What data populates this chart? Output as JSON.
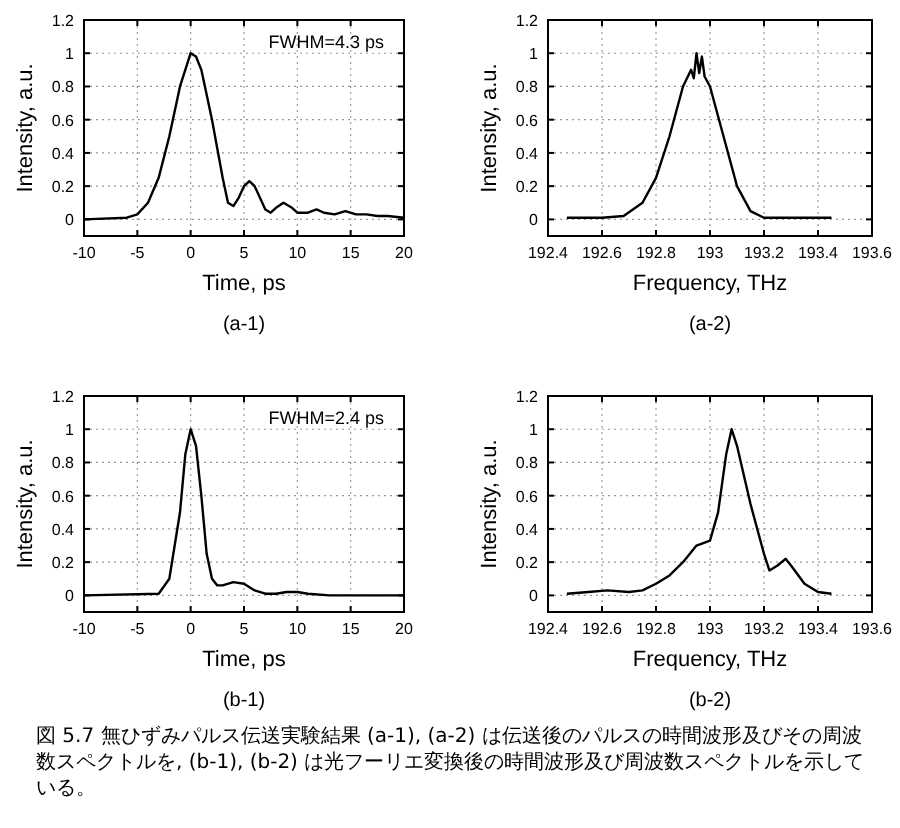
{
  "chart_data": [
    {
      "type": "line",
      "title": "(a-1)",
      "xlabel": "Time, ps",
      "ylabel": "Intensity, a.u.",
      "xlim": [
        -10,
        20
      ],
      "xticks": [
        -10,
        -5,
        0,
        5,
        10,
        15,
        20
      ],
      "ylim": [
        -0.1,
        1.2
      ],
      "yticks": [
        0,
        0.2,
        0.4,
        0.6,
        0.8,
        1,
        1.2
      ],
      "grid": true,
      "annotations": [
        "FWHM=4.3 ps"
      ],
      "series": [
        {
          "color": "#000000",
          "x": [
            -10,
            -6,
            -5,
            -4,
            -3,
            -2,
            -1,
            0,
            0.5,
            1,
            2,
            3,
            3.5,
            4,
            4.5,
            5,
            5.5,
            6,
            7,
            7.5,
            8,
            8.7,
            9.5,
            10,
            11,
            11.8,
            12.5,
            13.5,
            14.5,
            15.5,
            16.5,
            17.5,
            18.5,
            20
          ],
          "values": [
            0,
            0.01,
            0.03,
            0.1,
            0.25,
            0.5,
            0.8,
            1.0,
            0.98,
            0.9,
            0.6,
            0.25,
            0.1,
            0.08,
            0.13,
            0.2,
            0.23,
            0.2,
            0.06,
            0.04,
            0.07,
            0.1,
            0.07,
            0.04,
            0.04,
            0.06,
            0.04,
            0.03,
            0.05,
            0.03,
            0.03,
            0.02,
            0.02,
            0.01
          ]
        }
      ]
    },
    {
      "type": "line",
      "title": "(a-2)",
      "xlabel": "Frequency, THz",
      "ylabel": "Intensity, a.u.",
      "xlim": [
        192.4,
        193.6
      ],
      "xticks": [
        192.4,
        192.6,
        192.8,
        193,
        193.2,
        193.4,
        193.6
      ],
      "ylim": [
        -0.1,
        1.2
      ],
      "yticks": [
        0,
        0.2,
        0.4,
        0.6,
        0.8,
        1,
        1.2
      ],
      "grid": true,
      "series": [
        {
          "color": "#000000",
          "x": [
            192.47,
            192.6,
            192.68,
            192.75,
            192.8,
            192.85,
            192.9,
            192.93,
            192.94,
            192.95,
            192.96,
            192.97,
            192.98,
            193.0,
            193.05,
            193.1,
            193.15,
            193.2,
            193.3,
            193.45
          ],
          "values": [
            0.01,
            0.01,
            0.02,
            0.1,
            0.25,
            0.5,
            0.8,
            0.9,
            0.85,
            1.0,
            0.88,
            0.98,
            0.86,
            0.8,
            0.5,
            0.2,
            0.05,
            0.01,
            0.01,
            0.01
          ]
        }
      ]
    },
    {
      "type": "line",
      "title": "(b-1)",
      "xlabel": "Time, ps",
      "ylabel": "Intensity, a.u.",
      "xlim": [
        -10,
        20
      ],
      "xticks": [
        -10,
        -5,
        0,
        5,
        10,
        15,
        20
      ],
      "ylim": [
        -0.1,
        1.2
      ],
      "yticks": [
        0,
        0.2,
        0.4,
        0.6,
        0.8,
        1,
        1.2
      ],
      "grid": true,
      "annotations": [
        "FWHM=2.4 ps"
      ],
      "series": [
        {
          "color": "#000000",
          "x": [
            -10,
            -3,
            -2,
            -1,
            -0.5,
            0,
            0.5,
            1,
            1.5,
            2,
            2.5,
            3,
            4,
            5,
            6,
            7,
            8,
            9,
            10,
            11,
            13,
            20
          ],
          "values": [
            0,
            0.01,
            0.1,
            0.5,
            0.85,
            1.0,
            0.9,
            0.6,
            0.25,
            0.1,
            0.06,
            0.06,
            0.08,
            0.07,
            0.03,
            0.01,
            0.01,
            0.02,
            0.02,
            0.01,
            0,
            0
          ]
        }
      ]
    },
    {
      "type": "line",
      "title": "(b-2)",
      "xlabel": "Frequency, THz",
      "ylabel": "Intensity, a.u.",
      "xlim": [
        192.4,
        193.6
      ],
      "xticks": [
        192.4,
        192.6,
        192.8,
        193,
        193.2,
        193.4,
        193.6
      ],
      "ylim": [
        -0.1,
        1.2
      ],
      "yticks": [
        0,
        0.2,
        0.4,
        0.6,
        0.8,
        1,
        1.2
      ],
      "grid": true,
      "annotations": [
        "図 5.7 無ひずみパルス伝送実験結果 (a-1), (a-2) は伝送後のパルスの時間波形及びその周波数スペクトルを, (b-1), (b-2) は光フーリエ変換後の時間波形及び周波数スペクトルを示している。"
      ],
      "series": [
        {
          "color": "#000000",
          "x": [
            192.47,
            192.55,
            192.62,
            192.7,
            192.75,
            192.8,
            192.85,
            192.9,
            192.95,
            193.0,
            193.03,
            193.06,
            193.08,
            193.1,
            193.15,
            193.2,
            193.22,
            193.25,
            193.28,
            193.3,
            193.35,
            193.4,
            193.45
          ],
          "values": [
            0.01,
            0.02,
            0.03,
            0.02,
            0.03,
            0.07,
            0.12,
            0.2,
            0.3,
            0.33,
            0.5,
            0.85,
            1.0,
            0.9,
            0.55,
            0.25,
            0.15,
            0.18,
            0.22,
            0.18,
            0.07,
            0.02,
            0.01
          ]
        }
      ]
    }
  ]
}
